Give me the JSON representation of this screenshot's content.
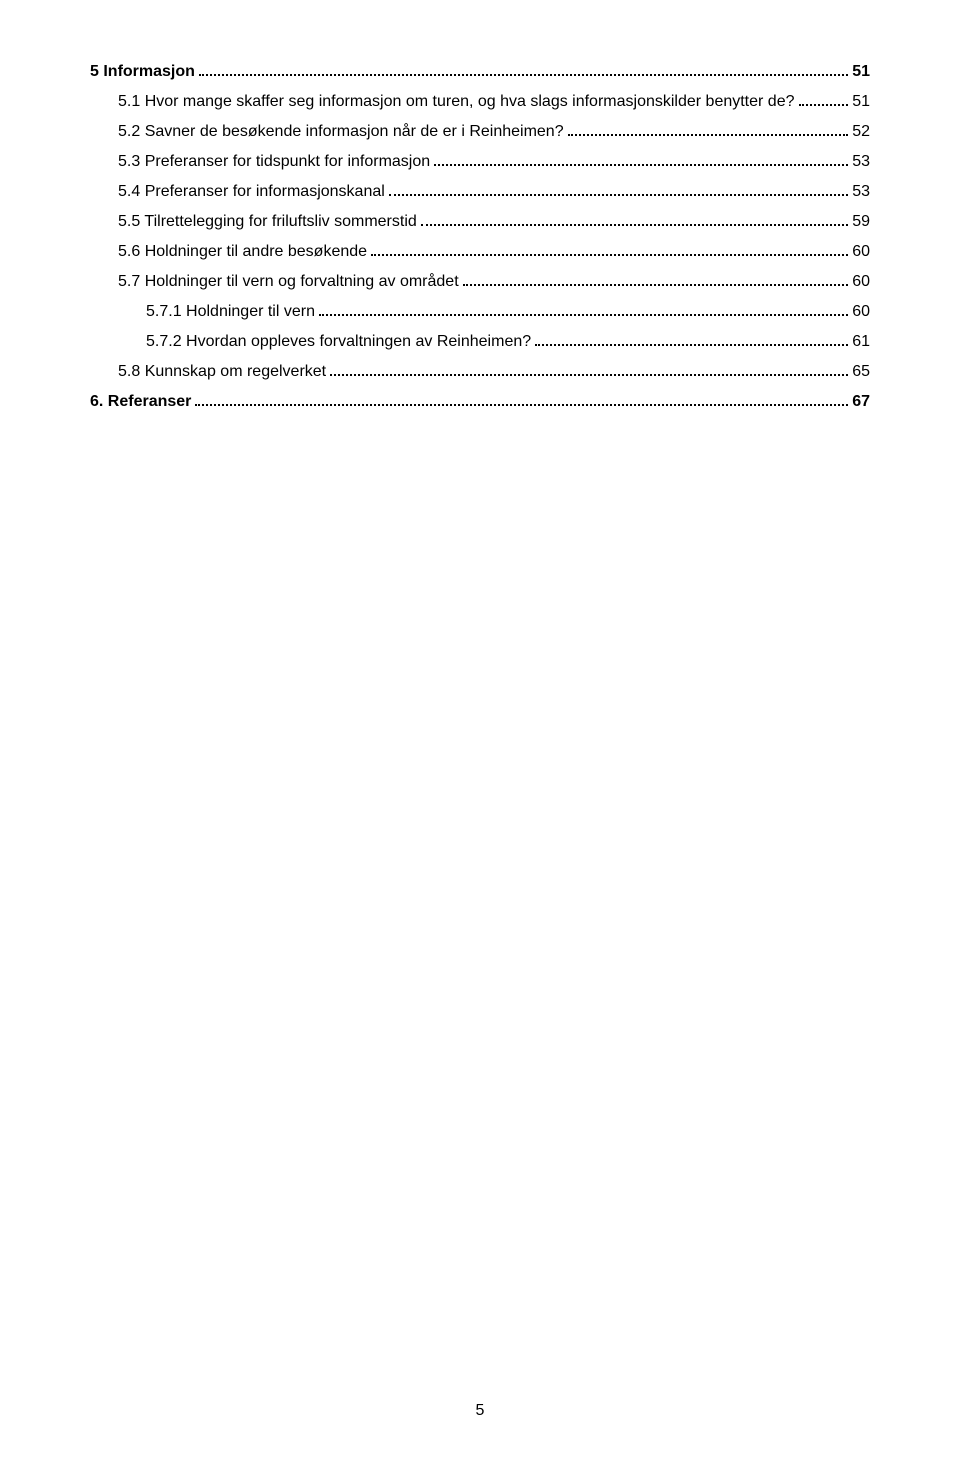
{
  "toc": [
    {
      "level": 1,
      "bold": true,
      "label": "5 Informasjon",
      "page": "51"
    },
    {
      "level": 2,
      "bold": false,
      "label": "5.1 Hvor mange skaffer seg informasjon om turen, og hva slags informasjonskilder benytter de?",
      "page": "51"
    },
    {
      "level": 2,
      "bold": false,
      "label": "5.2 Savner de besøkende informasjon når de er i Reinheimen?",
      "page": "52"
    },
    {
      "level": 2,
      "bold": false,
      "label": "5.3 Preferanser for tidspunkt for informasjon",
      "page": "53"
    },
    {
      "level": 2,
      "bold": false,
      "label": "5.4 Preferanser for informasjonskanal",
      "page": "53"
    },
    {
      "level": 2,
      "bold": false,
      "label": "5.5 Tilrettelegging for friluftsliv sommerstid",
      "page": "59"
    },
    {
      "level": 2,
      "bold": false,
      "label": "5.6 Holdninger til andre besøkende",
      "page": "60"
    },
    {
      "level": 2,
      "bold": false,
      "label": "5.7 Holdninger til vern og forvaltning av området",
      "page": "60"
    },
    {
      "level": 3,
      "bold": false,
      "label": "5.7.1 Holdninger til vern",
      "page": "60"
    },
    {
      "level": 3,
      "bold": false,
      "label": "5.7.2 Hvordan oppleves forvaltningen av Reinheimen?",
      "page": "61"
    },
    {
      "level": 2,
      "bold": false,
      "label": "5.8 Kunnskap om regelverket",
      "page": "65"
    },
    {
      "level": 1,
      "bold": true,
      "label": "6. Referanser",
      "page": "67"
    }
  ],
  "pageNumber": "5"
}
